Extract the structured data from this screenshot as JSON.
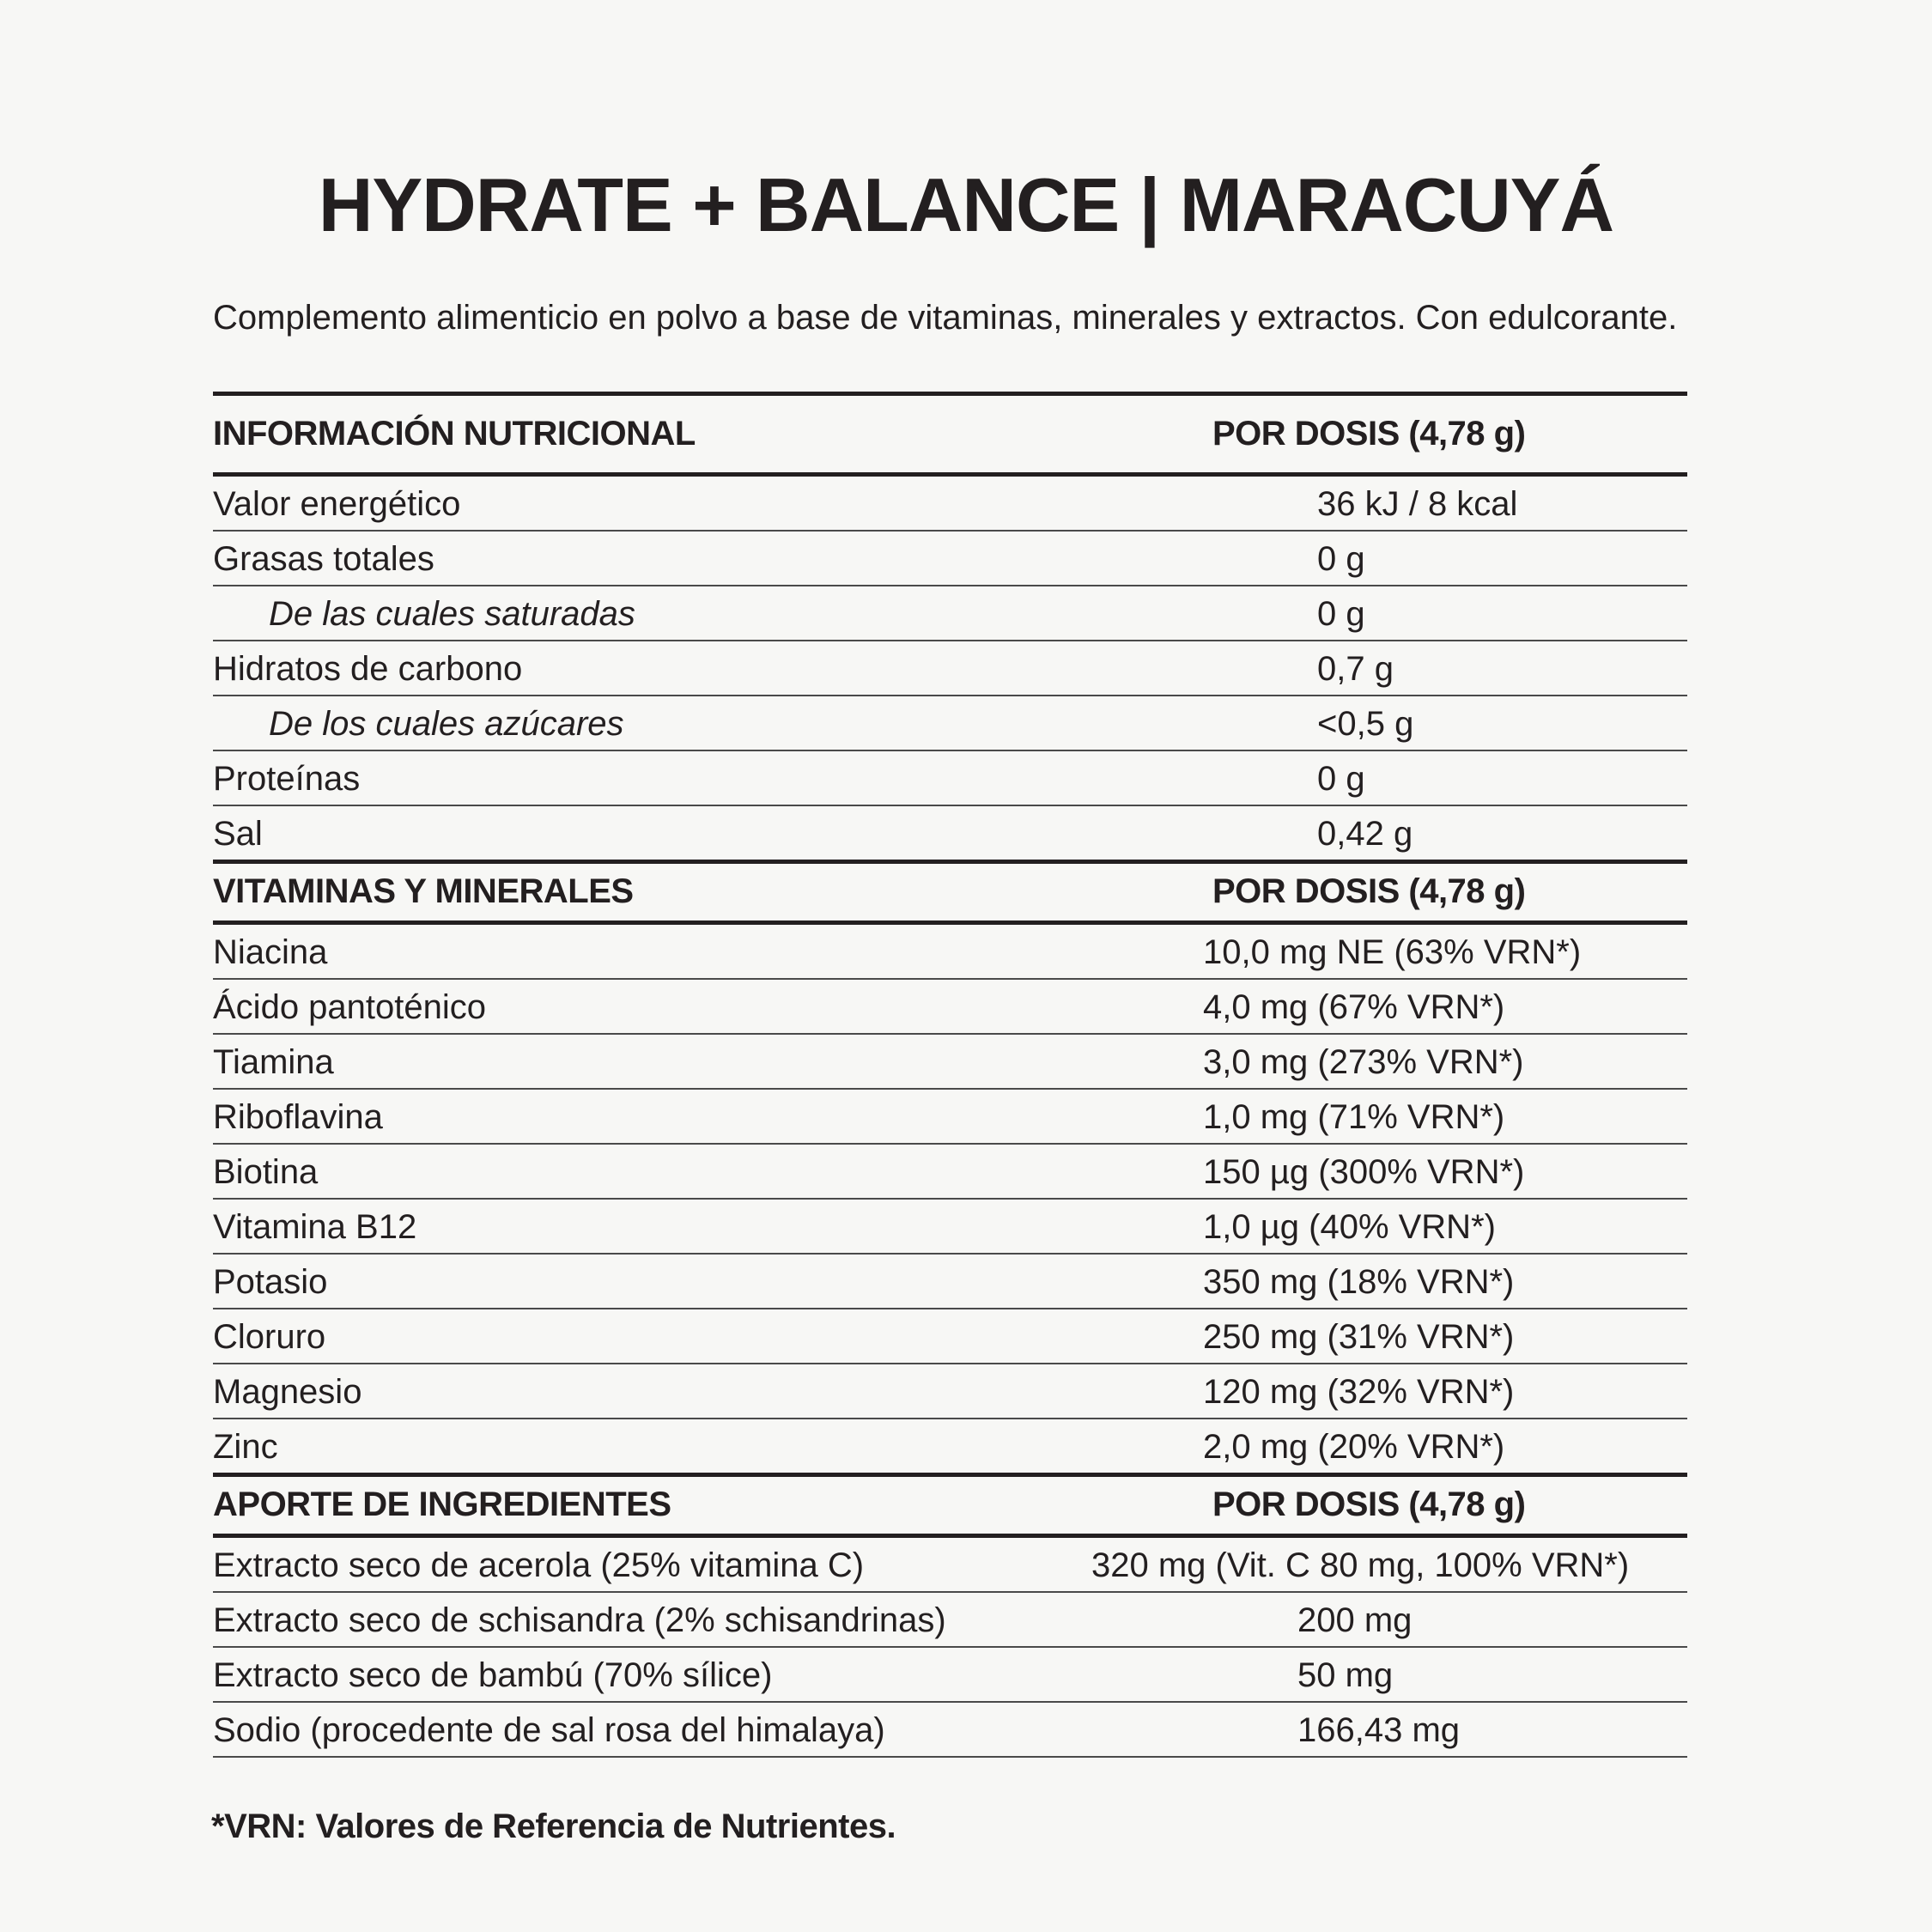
{
  "title": "HYDRATE + BALANCE | MARACUYÁ",
  "description": "Complemento alimenticio en polvo a base de vitaminas, minerales y extractos. Con edulcorante.",
  "sections": [
    {
      "header": "INFORMACIÓN NUTRICIONAL",
      "column": "POR DOSIS (4,78 g)",
      "rows": [
        {
          "label": "Valor energético",
          "value": "36 kJ / 8 kcal"
        },
        {
          "label": "Grasas totales",
          "value": "0 g"
        },
        {
          "label": "De las cuales saturadas",
          "value": "0 g",
          "indent": true
        },
        {
          "label": "Hidratos de carbono",
          "value": "0,7 g"
        },
        {
          "label": "De los cuales azúcares",
          "value": "<0,5 g",
          "indent": true
        },
        {
          "label": "Proteínas",
          "value": "0 g"
        },
        {
          "label": "Sal",
          "value": "0,42 g"
        }
      ]
    },
    {
      "header": "VITAMINAS Y MINERALES",
      "column": "POR DOSIS (4,78 g)",
      "rows": [
        {
          "label": "Niacina",
          "value": "10,0 mg NE (63% VRN*)"
        },
        {
          "label": "Ácido pantoténico",
          "value": "4,0 mg (67% VRN*)"
        },
        {
          "label": "Tiamina",
          "value": "3,0 mg (273% VRN*)"
        },
        {
          "label": "Riboflavina",
          "value": "1,0 mg (71% VRN*)"
        },
        {
          "label": "Biotina",
          "value": "150 µg (300% VRN*)"
        },
        {
          "label": "Vitamina B12",
          "value": "1,0 µg (40% VRN*)"
        },
        {
          "label": "Potasio",
          "value": "350 mg (18% VRN*)"
        },
        {
          "label": "Cloruro",
          "value": "250 mg (31% VRN*)"
        },
        {
          "label": "Magnesio",
          "value": "120 mg (32% VRN*)"
        },
        {
          "label": "Zinc",
          "value": "2,0 mg (20% VRN*)"
        }
      ]
    },
    {
      "header": "APORTE DE INGREDIENTES",
      "column": "POR DOSIS (4,78 g)",
      "rows": [
        {
          "label": "Extracto seco de acerola (25% vitamina C)",
          "value": "320 mg (Vit. C 80 mg, 100% VRN*)"
        },
        {
          "label": "Extracto seco de schisandra (2% schisandrinas)",
          "value": "200 mg"
        },
        {
          "label": "Extracto seco de bambú (70% sílice)",
          "value": "50 mg"
        },
        {
          "label": "Sodio (procedente de sal rosa del himalaya)",
          "value": "166,43 mg"
        }
      ]
    }
  ],
  "footnote": "*VRN: Valores de Referencia de Nutrientes."
}
